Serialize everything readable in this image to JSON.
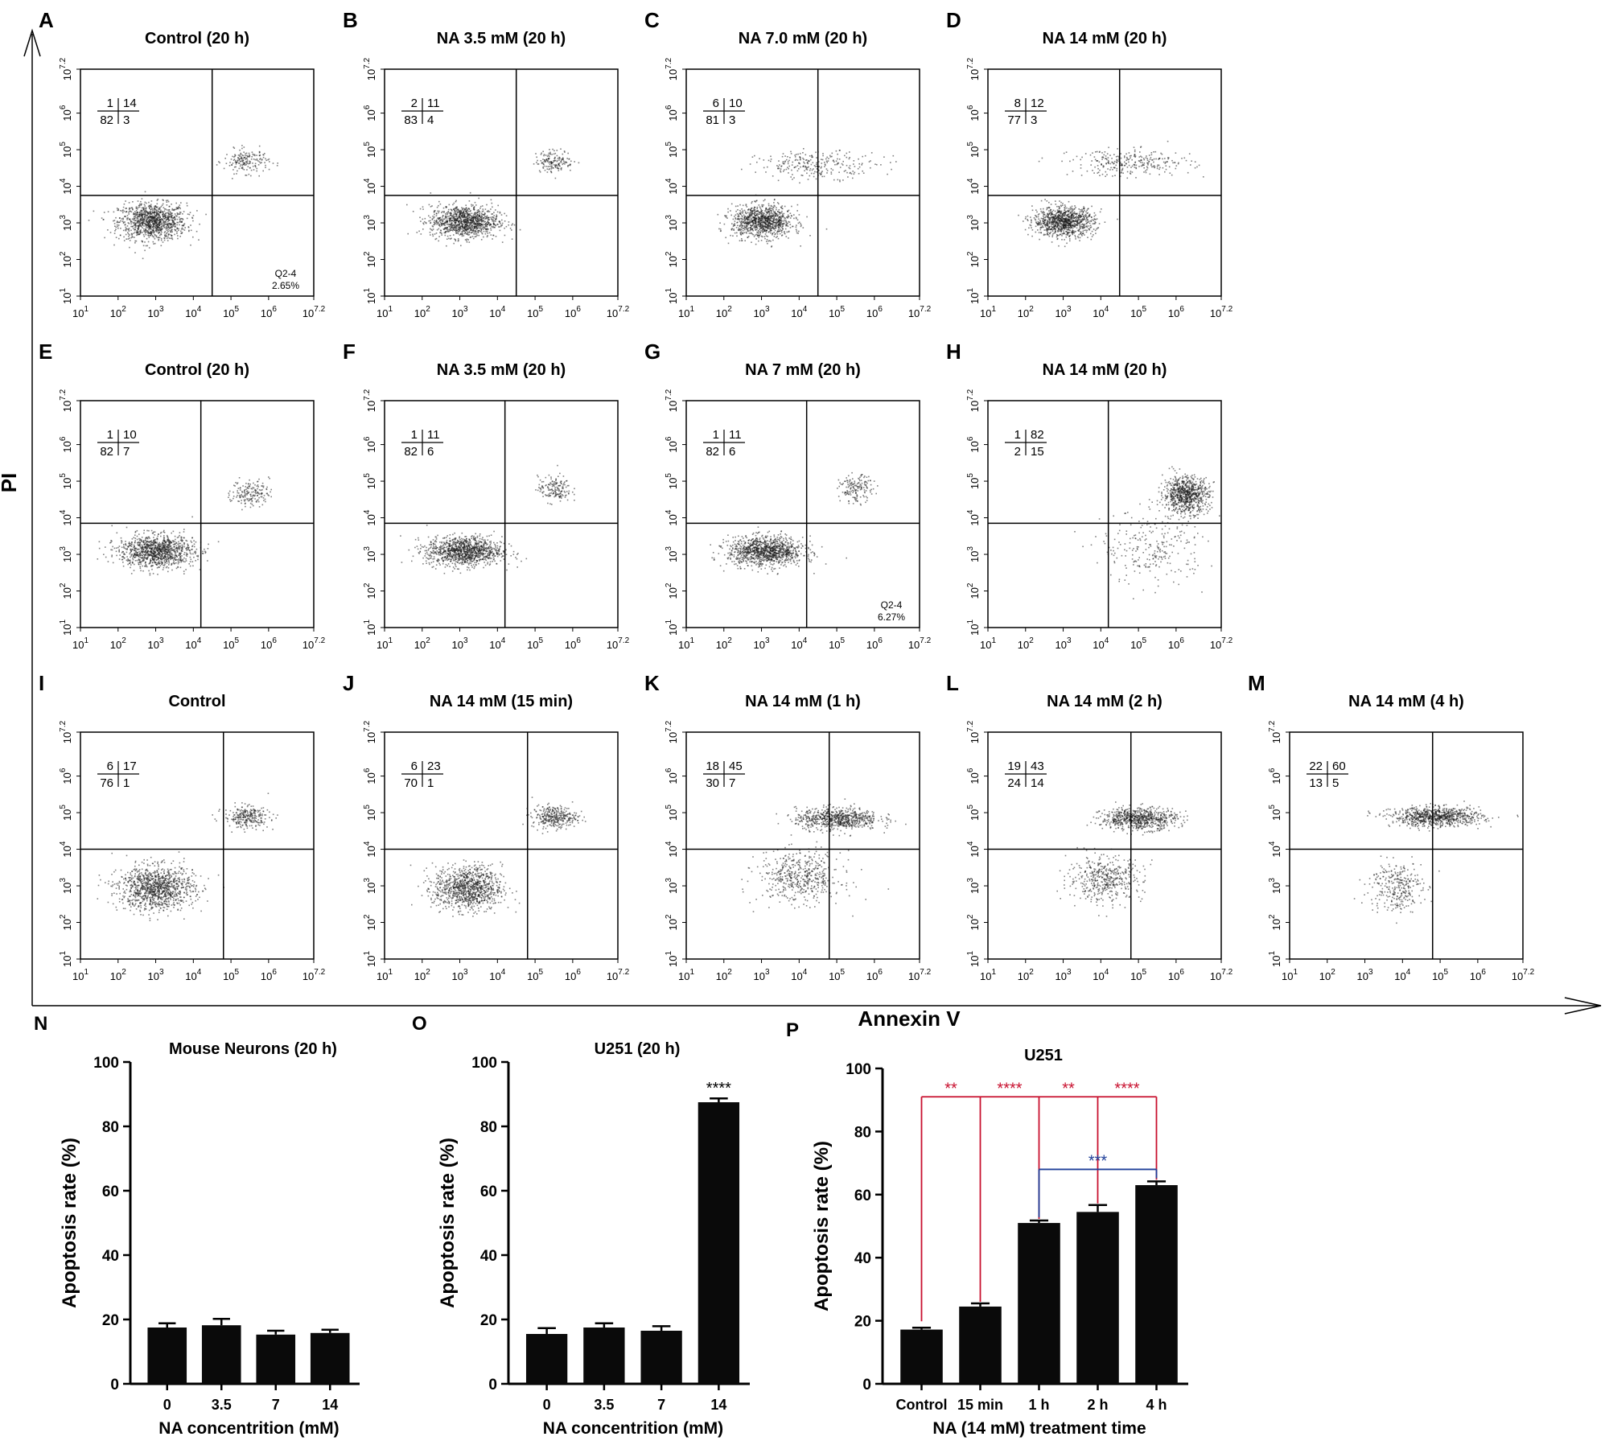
{
  "figure": {
    "global_y_label": "PI",
    "global_x_label": "Annexin V"
  },
  "colors": {
    "ink": "#000000",
    "bar": "#0a0a0a",
    "sig_red": "#c8102e",
    "sig_blue": "#1f3f99",
    "dots": "#1a1a1a"
  },
  "chart_data": [
    {
      "type": "scatter",
      "letter": "A",
      "title": "Control (20 h)",
      "quadrants": {
        "ul": "1",
        "ur": "14",
        "ll": "82",
        "lr": "3"
      },
      "annotation": [
        "Q2-4",
        "2.65%"
      ],
      "tick_labels": [
        "1",
        "2",
        "3",
        "4",
        "5",
        "6",
        "7.2"
      ],
      "axis_range": [
        1,
        7.2
      ],
      "gate": {
        "x": 4.5,
        "y": 3.75
      },
      "clusters": [
        {
          "x": 2.9,
          "y": 3.05,
          "sx": 0.45,
          "sy": 0.25,
          "n": 1100
        },
        {
          "x": 5.4,
          "y": 4.7,
          "sx": 0.3,
          "sy": 0.16,
          "n": 180
        }
      ]
    },
    {
      "type": "scatter",
      "letter": "B",
      "title": "NA 3.5 mM (20 h)",
      "quadrants": {
        "ul": "2",
        "ur": "11",
        "ll": "83",
        "lr": "4"
      },
      "tick_labels": [
        "1",
        "2",
        "3",
        "4",
        "5",
        "6",
        "7.2"
      ],
      "axis_range": [
        1,
        7.2
      ],
      "gate": {
        "x": 4.5,
        "y": 3.75
      },
      "clusters": [
        {
          "x": 3.1,
          "y": 3.05,
          "sx": 0.45,
          "sy": 0.22,
          "n": 1100
        },
        {
          "x": 5.5,
          "y": 4.7,
          "sx": 0.25,
          "sy": 0.15,
          "n": 160
        }
      ]
    },
    {
      "type": "scatter",
      "letter": "C",
      "title": "NA 7.0 mM (20 h)",
      "quadrants": {
        "ul": "6",
        "ur": "10",
        "ll": "81",
        "lr": "3"
      },
      "tick_labels": [
        "1",
        "2",
        "3",
        "4",
        "5",
        "6",
        "7.2"
      ],
      "axis_range": [
        1,
        7.2
      ],
      "gate": {
        "x": 4.5,
        "y": 3.75
      },
      "clusters": [
        {
          "x": 3.0,
          "y": 3.05,
          "sx": 0.4,
          "sy": 0.22,
          "n": 1000
        },
        {
          "x": 4.5,
          "y": 4.6,
          "sx": 0.8,
          "sy": 0.18,
          "n": 260
        }
      ]
    },
    {
      "type": "scatter",
      "letter": "D",
      "title": "NA 14 mM (20 h)",
      "quadrants": {
        "ul": "8",
        "ur": "12",
        "ll": "77",
        "lr": "3"
      },
      "tick_labels": [
        "1",
        "2",
        "3",
        "4",
        "5",
        "6",
        "7.2"
      ],
      "axis_range": [
        1,
        7.2
      ],
      "gate": {
        "x": 4.5,
        "y": 3.75
      },
      "clusters": [
        {
          "x": 3.0,
          "y": 3.05,
          "sx": 0.4,
          "sy": 0.2,
          "n": 1000
        },
        {
          "x": 4.8,
          "y": 4.65,
          "sx": 0.8,
          "sy": 0.18,
          "n": 280
        }
      ]
    },
    {
      "type": "scatter",
      "letter": "E",
      "title": "Control (20 h)",
      "quadrants": {
        "ul": "1",
        "ur": "10",
        "ll": "82",
        "lr": "7"
      },
      "tick_labels": [
        "1",
        "2",
        "3",
        "4",
        "5",
        "6",
        "7.2"
      ],
      "axis_range": [
        1,
        7.2
      ],
      "gate": {
        "x": 4.2,
        "y": 3.85
      },
      "clusters": [
        {
          "x": 3.0,
          "y": 3.1,
          "sx": 0.5,
          "sy": 0.22,
          "n": 1100
        },
        {
          "x": 5.5,
          "y": 4.7,
          "sx": 0.25,
          "sy": 0.18,
          "n": 170
        }
      ]
    },
    {
      "type": "scatter",
      "letter": "F",
      "title": "NA 3.5 mM (20 h)",
      "quadrants": {
        "ul": "1",
        "ur": "11",
        "ll": "82",
        "lr": "6"
      },
      "tick_labels": [
        "1",
        "2",
        "3",
        "4",
        "5",
        "6",
        "7.2"
      ],
      "axis_range": [
        1,
        7.2
      ],
      "gate": {
        "x": 4.2,
        "y": 3.85
      },
      "clusters": [
        {
          "x": 3.1,
          "y": 3.1,
          "sx": 0.5,
          "sy": 0.2,
          "n": 1100
        },
        {
          "x": 5.5,
          "y": 4.8,
          "sx": 0.22,
          "sy": 0.18,
          "n": 160
        }
      ]
    },
    {
      "type": "scatter",
      "letter": "G",
      "title": "NA 7 mM (20 h)",
      "quadrants": {
        "ul": "1",
        "ur": "11",
        "ll": "82",
        "lr": "6"
      },
      "annotation": [
        "Q2-4",
        "6.27%"
      ],
      "tick_labels": [
        "1",
        "2",
        "3",
        "4",
        "5",
        "6",
        "7.2"
      ],
      "axis_range": [
        1,
        7.2
      ],
      "gate": {
        "x": 4.2,
        "y": 3.85
      },
      "clusters": [
        {
          "x": 3.1,
          "y": 3.1,
          "sx": 0.5,
          "sy": 0.2,
          "n": 1100
        },
        {
          "x": 5.5,
          "y": 4.8,
          "sx": 0.22,
          "sy": 0.18,
          "n": 160
        }
      ]
    },
    {
      "type": "scatter",
      "letter": "H",
      "title": "NA 14 mM (20 h)",
      "quadrants": {
        "ul": "1",
        "ur": "82",
        "ll": "2",
        "lr": "15"
      },
      "tick_labels": [
        "1",
        "2",
        "3",
        "4",
        "5",
        "6",
        "7.2"
      ],
      "axis_range": [
        1,
        7.2
      ],
      "gate": {
        "x": 4.2,
        "y": 3.85
      },
      "clusters": [
        {
          "x": 6.25,
          "y": 4.65,
          "sx": 0.3,
          "sy": 0.25,
          "n": 800
        },
        {
          "x": 5.4,
          "y": 3.2,
          "sx": 0.7,
          "sy": 0.5,
          "n": 260
        }
      ]
    },
    {
      "type": "scatter",
      "letter": "I",
      "title": "Control",
      "quadrants": {
        "ul": "6",
        "ur": "17",
        "ll": "76",
        "lr": "1"
      },
      "tick_labels": [
        "1",
        "2",
        "3",
        "4",
        "5",
        "6",
        "7.2"
      ],
      "axis_range": [
        1,
        7.2
      ],
      "gate": {
        "x": 4.8,
        "y": 4.0
      },
      "clusters": [
        {
          "x": 3.0,
          "y": 2.95,
          "sx": 0.5,
          "sy": 0.3,
          "n": 1100
        },
        {
          "x": 5.4,
          "y": 4.9,
          "sx": 0.3,
          "sy": 0.15,
          "n": 260
        }
      ]
    },
    {
      "type": "scatter",
      "letter": "J",
      "title": "NA 14 mM (15 min)",
      "quadrants": {
        "ul": "6",
        "ur": "23",
        "ll": "70",
        "lr": "1"
      },
      "tick_labels": [
        "1",
        "2",
        "3",
        "4",
        "5",
        "6",
        "7.2"
      ],
      "axis_range": [
        1,
        7.2
      ],
      "gate": {
        "x": 4.8,
        "y": 4.0
      },
      "clusters": [
        {
          "x": 3.2,
          "y": 2.95,
          "sx": 0.45,
          "sy": 0.3,
          "n": 1000
        },
        {
          "x": 5.5,
          "y": 4.9,
          "sx": 0.3,
          "sy": 0.15,
          "n": 320
        }
      ]
    },
    {
      "type": "scatter",
      "letter": "K",
      "title": "NA 14 mM (1 h)",
      "quadrants": {
        "ul": "18",
        "ur": "45",
        "ll": "30",
        "lr": "7"
      },
      "tick_labels": [
        "1",
        "2",
        "3",
        "4",
        "5",
        "6",
        "7.2"
      ],
      "axis_range": [
        1,
        7.2
      ],
      "gate": {
        "x": 4.8,
        "y": 4.0
      },
      "clusters": [
        {
          "x": 5.0,
          "y": 4.85,
          "sx": 0.55,
          "sy": 0.15,
          "n": 700
        },
        {
          "x": 4.0,
          "y": 3.25,
          "sx": 0.55,
          "sy": 0.35,
          "n": 500
        }
      ]
    },
    {
      "type": "scatter",
      "letter": "L",
      "title": "NA 14 mM (2 h)",
      "quadrants": {
        "ul": "19",
        "ur": "43",
        "ll": "24",
        "lr": "14"
      },
      "tick_labels": [
        "1",
        "2",
        "3",
        "4",
        "5",
        "6",
        "7.2"
      ],
      "axis_range": [
        1,
        7.2
      ],
      "gate": {
        "x": 4.8,
        "y": 4.0
      },
      "clusters": [
        {
          "x": 5.0,
          "y": 4.85,
          "sx": 0.5,
          "sy": 0.15,
          "n": 700
        },
        {
          "x": 4.1,
          "y": 3.2,
          "sx": 0.5,
          "sy": 0.3,
          "n": 450
        }
      ]
    },
    {
      "type": "scatter",
      "letter": "M",
      "title": "NA 14 mM (4 h)",
      "quadrants": {
        "ul": "22",
        "ur": "60",
        "ll": "13",
        "lr": "5"
      },
      "tick_labels": [
        "1",
        "2",
        "3",
        "4",
        "5",
        "6",
        "7.2"
      ],
      "axis_range": [
        1,
        7.2
      ],
      "gate": {
        "x": 4.8,
        "y": 4.0
      },
      "clusters": [
        {
          "x": 4.9,
          "y": 4.9,
          "sx": 0.6,
          "sy": 0.13,
          "n": 800
        },
        {
          "x": 3.8,
          "y": 3.0,
          "sx": 0.35,
          "sy": 0.35,
          "n": 300
        }
      ]
    },
    {
      "type": "bar",
      "letter": "N",
      "title": "Mouse Neurons (20 h)",
      "categories": [
        "0",
        "3.5",
        "7",
        "14"
      ],
      "values": [
        17.5,
        18.2,
        15.3,
        15.8
      ],
      "errors": [
        1.3,
        2.0,
        1.2,
        1.0
      ],
      "xlabel": "NA concentrition (mM)",
      "ylabel": "Apoptosis rate (%)",
      "ylim": [
        0,
        100
      ],
      "yticks": [
        "0",
        "20",
        "40",
        "60",
        "80",
        "100"
      ]
    },
    {
      "type": "bar",
      "letter": "O",
      "title": "U251 (20 h)",
      "categories": [
        "0",
        "3.5",
        "7",
        "14"
      ],
      "values": [
        15.5,
        17.5,
        16.5,
        87.5
      ],
      "errors": [
        1.8,
        1.3,
        1.4,
        1.2
      ],
      "xlabel": "NA concentrition (mM)",
      "ylabel": "Apoptosis rate (%)",
      "ylim": [
        0,
        100
      ],
      "yticks": [
        "0",
        "20",
        "40",
        "60",
        "80",
        "100"
      ],
      "annotations": [
        {
          "index": 3,
          "text": "****"
        }
      ]
    },
    {
      "type": "bar",
      "letter": "P",
      "title": "U251",
      "categories": [
        "Control",
        "15 min",
        "1 h",
        "2 h",
        "4 h"
      ],
      "values": [
        17.2,
        24.5,
        51.0,
        54.5,
        63.0
      ],
      "errors": [
        0.6,
        1.0,
        0.8,
        2.2,
        1.2
      ],
      "xlabel": "NA (14 mM) treatment time",
      "ylabel": "Apoptosis rate (%)",
      "ylim": [
        0,
        100
      ],
      "yticks": [
        "0",
        "20",
        "40",
        "60",
        "80",
        "100"
      ],
      "red_bracket": {
        "level": 91,
        "labels": [
          "**",
          "****",
          "**",
          "****"
        ]
      },
      "blue_bracket": {
        "from": 2,
        "to": 4,
        "level": 68,
        "label": "***"
      }
    }
  ]
}
